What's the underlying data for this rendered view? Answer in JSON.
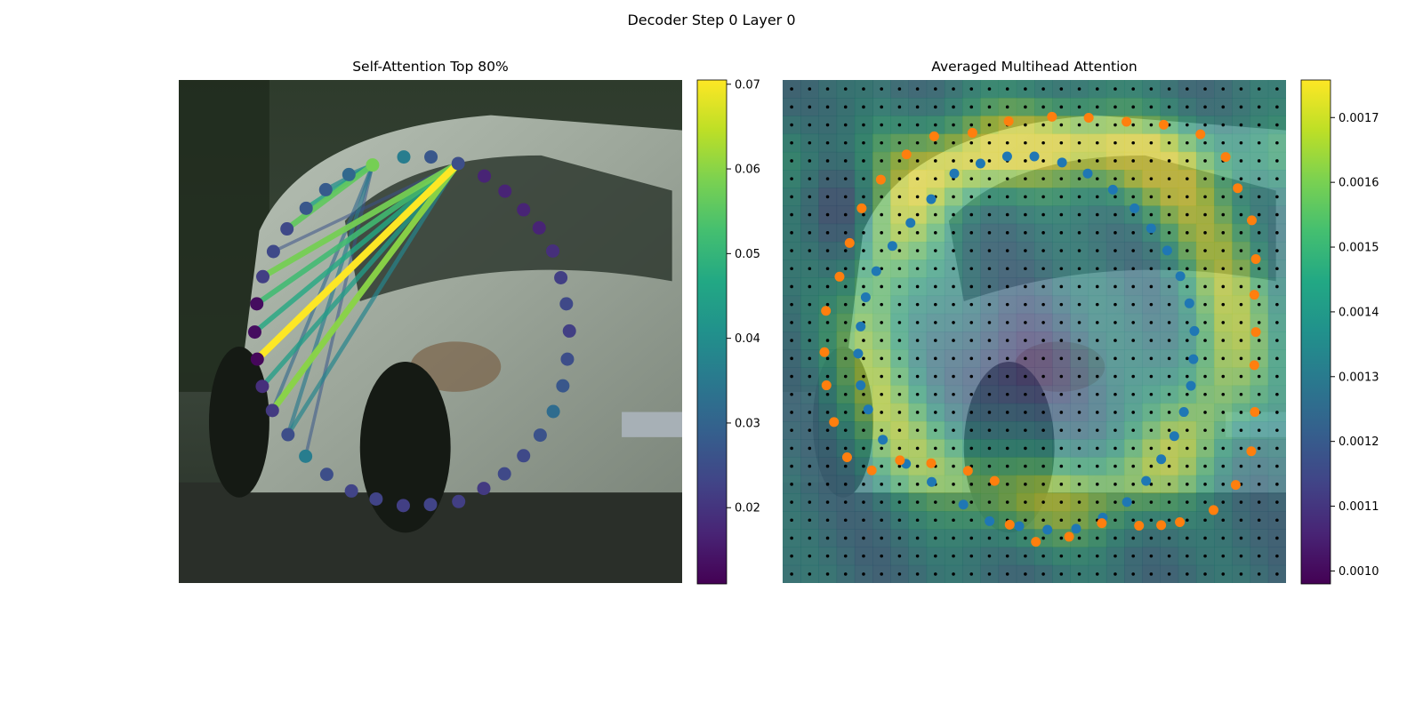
{
  "figure": {
    "title": "Decoder Step 0 Layer 0"
  },
  "chart_data": [
    {
      "type": "scatter",
      "title": "Self-Attention Top 80%",
      "colormap": "viridis",
      "colorbar": {
        "range": [
          0.011,
          0.0705
        ],
        "ticks": [
          0.02,
          0.03,
          0.04,
          0.05,
          0.06,
          0.07
        ],
        "tick_labels": [
          "0.02",
          "0.03",
          "0.04",
          "0.05",
          "0.06",
          "0.07"
        ]
      },
      "axis_limits": {
        "x": [
          0,
          1
        ],
        "y": [
          0,
          1
        ]
      },
      "points": [
        {
          "x": 0.385,
          "y": 0.831,
          "v": 0.058
        },
        {
          "x": 0.447,
          "y": 0.847,
          "v": 0.036
        },
        {
          "x": 0.501,
          "y": 0.847,
          "v": 0.027
        },
        {
          "x": 0.555,
          "y": 0.834,
          "v": 0.025
        },
        {
          "x": 0.607,
          "y": 0.809,
          "v": 0.017
        },
        {
          "x": 0.648,
          "y": 0.779,
          "v": 0.017
        },
        {
          "x": 0.685,
          "y": 0.742,
          "v": 0.017
        },
        {
          "x": 0.716,
          "y": 0.706,
          "v": 0.017
        },
        {
          "x": 0.743,
          "y": 0.66,
          "v": 0.019
        },
        {
          "x": 0.759,
          "y": 0.607,
          "v": 0.022
        },
        {
          "x": 0.77,
          "y": 0.555,
          "v": 0.024
        },
        {
          "x": 0.776,
          "y": 0.501,
          "v": 0.022
        },
        {
          "x": 0.772,
          "y": 0.445,
          "v": 0.025
        },
        {
          "x": 0.763,
          "y": 0.392,
          "v": 0.027
        },
        {
          "x": 0.744,
          "y": 0.341,
          "v": 0.032
        },
        {
          "x": 0.718,
          "y": 0.294,
          "v": 0.026
        },
        {
          "x": 0.685,
          "y": 0.253,
          "v": 0.024
        },
        {
          "x": 0.647,
          "y": 0.217,
          "v": 0.024
        },
        {
          "x": 0.606,
          "y": 0.188,
          "v": 0.021
        },
        {
          "x": 0.556,
          "y": 0.162,
          "v": 0.022
        },
        {
          "x": 0.5,
          "y": 0.156,
          "v": 0.023
        },
        {
          "x": 0.446,
          "y": 0.154,
          "v": 0.022
        },
        {
          "x": 0.392,
          "y": 0.167,
          "v": 0.023
        },
        {
          "x": 0.343,
          "y": 0.183,
          "v": 0.023
        },
        {
          "x": 0.294,
          "y": 0.216,
          "v": 0.025
        },
        {
          "x": 0.252,
          "y": 0.252,
          "v": 0.036
        },
        {
          "x": 0.217,
          "y": 0.295,
          "v": 0.025
        },
        {
          "x": 0.186,
          "y": 0.343,
          "v": 0.021
        },
        {
          "x": 0.166,
          "y": 0.391,
          "v": 0.019
        },
        {
          "x": 0.156,
          "y": 0.445,
          "v": 0.012
        },
        {
          "x": 0.151,
          "y": 0.499,
          "v": 0.013
        },
        {
          "x": 0.155,
          "y": 0.555,
          "v": 0.013
        },
        {
          "x": 0.167,
          "y": 0.609,
          "v": 0.022
        },
        {
          "x": 0.188,
          "y": 0.659,
          "v": 0.024
        },
        {
          "x": 0.215,
          "y": 0.704,
          "v": 0.024
        },
        {
          "x": 0.253,
          "y": 0.745,
          "v": 0.027
        },
        {
          "x": 0.292,
          "y": 0.782,
          "v": 0.028
        },
        {
          "x": 0.338,
          "y": 0.812,
          "v": 0.031
        }
      ],
      "lines": [
        {
          "from": 3,
          "to": 29,
          "v": 0.0705
        },
        {
          "from": 3,
          "to": 27,
          "v": 0.06
        },
        {
          "from": 3,
          "to": 32,
          "v": 0.058
        },
        {
          "from": 3,
          "to": 31,
          "v": 0.052
        },
        {
          "from": 3,
          "to": 30,
          "v": 0.047
        },
        {
          "from": 3,
          "to": 28,
          "v": 0.044
        },
        {
          "from": 3,
          "to": 26,
          "v": 0.038
        },
        {
          "from": 3,
          "to": 33,
          "v": 0.026
        },
        {
          "from": 0,
          "to": 34,
          "v": 0.056
        },
        {
          "from": 0,
          "to": 35,
          "v": 0.046
        },
        {
          "from": 0,
          "to": 36,
          "v": 0.04
        },
        {
          "from": 0,
          "to": 37,
          "v": 0.038
        },
        {
          "from": 0,
          "to": 26,
          "v": 0.035
        },
        {
          "from": 0,
          "to": 27,
          "v": 0.031
        },
        {
          "from": 0,
          "to": 25,
          "v": 0.027
        }
      ]
    },
    {
      "type": "heatmap",
      "title": "Averaged Multihead Attention",
      "colormap": "viridis",
      "grid": {
        "cols": 28,
        "rows": 28
      },
      "colorbar": {
        "range": [
          0.00098,
          0.001758
        ],
        "ticks": [
          0.001,
          0.0011,
          0.0012,
          0.0013,
          0.0014,
          0.0015,
          0.0016,
          0.0017
        ],
        "tick_labels": [
          "0.0010",
          "0.0011",
          "0.0012",
          "0.0013",
          "0.0014",
          "0.0015",
          "0.0016",
          "0.0017"
        ]
      },
      "axis_limits": {
        "x": [
          0,
          1
        ],
        "y": [
          0,
          1
        ]
      },
      "reference_points": {
        "color": "#ff7f0e",
        "points": [
          [
            0.449,
            0.918
          ],
          [
            0.535,
            0.927
          ],
          [
            0.608,
            0.925
          ],
          [
            0.683,
            0.917
          ],
          [
            0.757,
            0.911
          ],
          [
            0.83,
            0.892
          ],
          [
            0.88,
            0.847
          ],
          [
            0.904,
            0.785
          ],
          [
            0.932,
            0.721
          ],
          [
            0.94,
            0.644
          ],
          [
            0.937,
            0.573
          ],
          [
            0.94,
            0.499
          ],
          [
            0.937,
            0.433
          ],
          [
            0.938,
            0.34
          ],
          [
            0.931,
            0.262
          ],
          [
            0.9,
            0.195
          ],
          [
            0.856,
            0.145
          ],
          [
            0.789,
            0.121
          ],
          [
            0.752,
            0.115
          ],
          [
            0.708,
            0.114
          ],
          [
            0.634,
            0.119
          ],
          [
            0.569,
            0.092
          ],
          [
            0.503,
            0.082
          ],
          [
            0.451,
            0.116
          ],
          [
            0.421,
            0.203
          ],
          [
            0.368,
            0.223
          ],
          [
            0.295,
            0.238
          ],
          [
            0.233,
            0.244
          ],
          [
            0.177,
            0.224
          ],
          [
            0.128,
            0.25
          ],
          [
            0.102,
            0.32
          ],
          [
            0.087,
            0.393
          ],
          [
            0.083,
            0.459
          ],
          [
            0.086,
            0.541
          ],
          [
            0.113,
            0.609
          ],
          [
            0.133,
            0.676
          ],
          [
            0.157,
            0.745
          ],
          [
            0.195,
            0.802
          ],
          [
            0.246,
            0.852
          ],
          [
            0.301,
            0.888
          ],
          [
            0.377,
            0.895
          ]
        ]
      },
      "predicted_points": {
        "color": "#1f77b4",
        "points": [
          [
            0.341,
            0.814
          ],
          [
            0.393,
            0.834
          ],
          [
            0.446,
            0.848
          ],
          [
            0.5,
            0.848
          ],
          [
            0.555,
            0.836
          ],
          [
            0.606,
            0.814
          ],
          [
            0.656,
            0.782
          ],
          [
            0.699,
            0.745
          ],
          [
            0.732,
            0.705
          ],
          [
            0.764,
            0.661
          ],
          [
            0.79,
            0.61
          ],
          [
            0.808,
            0.556
          ],
          [
            0.818,
            0.501
          ],
          [
            0.816,
            0.445
          ],
          [
            0.811,
            0.392
          ],
          [
            0.797,
            0.34
          ],
          [
            0.778,
            0.292
          ],
          [
            0.752,
            0.246
          ],
          [
            0.722,
            0.203
          ],
          [
            0.684,
            0.161
          ],
          [
            0.636,
            0.13
          ],
          [
            0.583,
            0.108
          ],
          [
            0.526,
            0.106
          ],
          [
            0.47,
            0.113
          ],
          [
            0.411,
            0.123
          ],
          [
            0.359,
            0.156
          ],
          [
            0.296,
            0.201
          ],
          [
            0.245,
            0.237
          ],
          [
            0.199,
            0.285
          ],
          [
            0.17,
            0.345
          ],
          [
            0.155,
            0.393
          ],
          [
            0.15,
            0.456
          ],
          [
            0.155,
            0.51
          ],
          [
            0.165,
            0.568
          ],
          [
            0.186,
            0.62
          ],
          [
            0.218,
            0.67
          ],
          [
            0.254,
            0.716
          ],
          [
            0.295,
            0.763
          ]
        ]
      }
    }
  ]
}
